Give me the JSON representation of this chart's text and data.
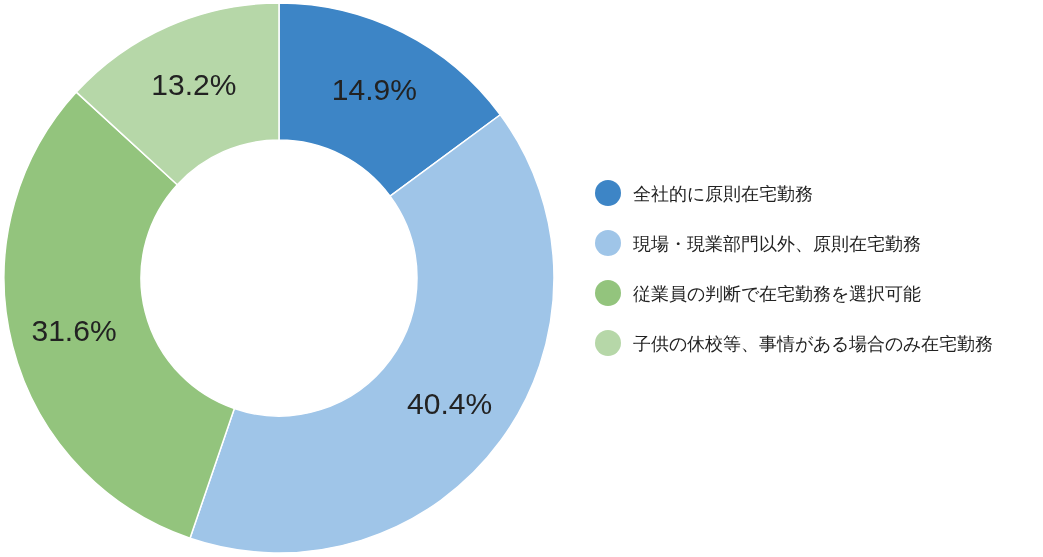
{
  "chart_data": {
    "type": "donut",
    "categories": [
      "全社的に原則在宅勤務",
      "現場・現業部門以外、原則在宅勤務",
      "従業員の判断で在宅勤務を選択可能",
      "子供の休校等、事情がある場合のみ在宅勤務"
    ],
    "values": [
      14.9,
      40.4,
      31.6,
      13.2
    ],
    "colors": [
      "#3d85c6",
      "#9fc5e8",
      "#93c47d",
      "#b6d7a8"
    ],
    "value_labels": [
      "14.9%",
      "40.4%",
      "31.6%",
      "13.2%"
    ],
    "legend": "right"
  }
}
